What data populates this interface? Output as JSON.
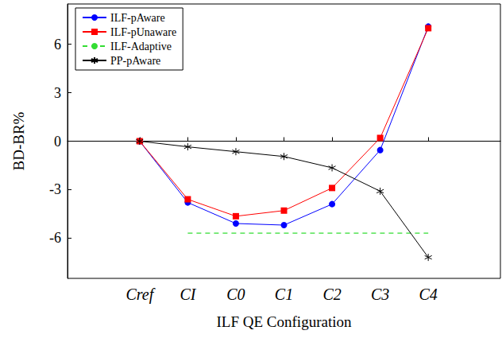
{
  "chart_data": {
    "type": "line",
    "x_label": "ILF QE Configuration",
    "y_label": "BD-BR%",
    "categories": [
      null,
      "Cref",
      "CI",
      "C0",
      "C1",
      "C2",
      "C3",
      "C4",
      null
    ],
    "series": [
      {
        "color": "#000000",
        "line_style": "dashed",
        "marker": "none",
        "values": [
          0,
          0,
          0,
          0,
          0,
          0,
          0,
          0,
          0
        ]
      },
      {
        "name": "ILF-pAware",
        "color": "#0000ff",
        "line_style": "solid",
        "marker": "circle",
        "values": [
          null,
          0,
          -3.8,
          -5.1,
          -5.2,
          -3.9,
          -0.55,
          7.1,
          null
        ]
      },
      {
        "name": "ILF-pUnaware",
        "color": "#ff0000",
        "line_style": "solid",
        "marker": "square",
        "values": [
          null,
          0,
          -3.6,
          -4.65,
          -4.3,
          -2.9,
          0.2,
          7.0,
          null
        ]
      },
      {
        "name": "ILF-Adaptive",
        "color": "#33dd33",
        "line_style": "dashed",
        "marker": "none",
        "values": [
          null,
          null,
          -5.7,
          -5.7,
          -5.7,
          -5.7,
          -5.7,
          -5.7,
          null
        ]
      },
      {
        "name": "PP-pAware",
        "color": "#000000",
        "line_style": "solid",
        "marker": "star",
        "values": [
          null,
          0,
          -0.35,
          -0.65,
          -0.95,
          -1.65,
          -3.1,
          -7.2,
          null
        ]
      }
    ],
    "ylim": [
      -8.5,
      8.5
    ],
    "yticks": [
      -6,
      -3,
      0,
      3,
      6
    ],
    "grid": false,
    "legend": "upper left"
  }
}
